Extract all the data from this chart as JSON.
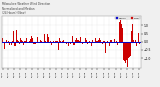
{
  "background_color": "#f0f0f0",
  "plot_bg_color": "#ffffff",
  "grid_color": "#cccccc",
  "bar_color": "#cc0000",
  "median_color": "#0000cc",
  "median_value": 0.0,
  "ylim": [
    -1.6,
    1.6
  ],
  "n_points": 288,
  "noise_seed": 7,
  "legend_colors": [
    "#0000cc",
    "#cc0000"
  ],
  "title_color": "#444444",
  "right_tick_labels": [
    "1",
    "0.5",
    "0",
    "-0.5",
    "-1"
  ]
}
